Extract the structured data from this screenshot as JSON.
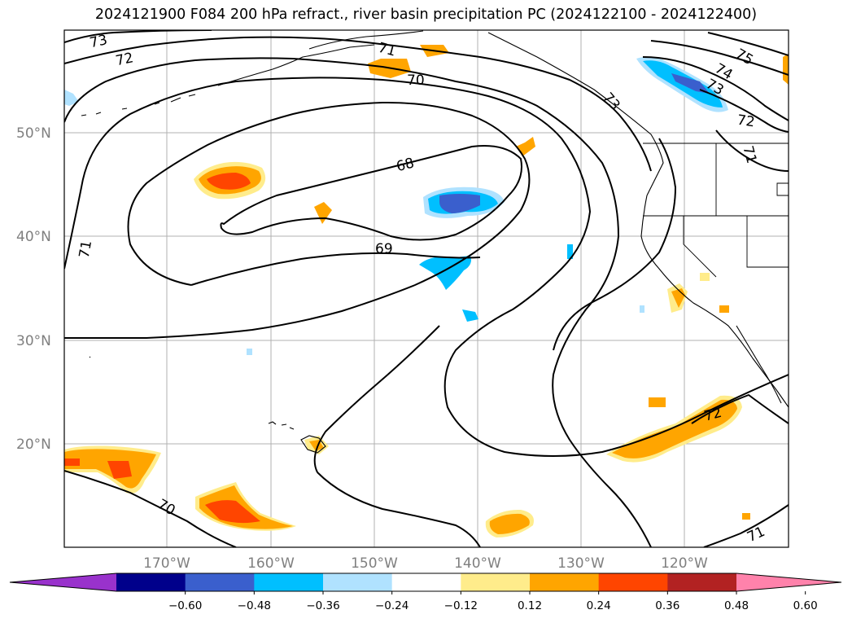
{
  "title": "2024121900 F084 200 hPa refract., river basin precipitation PC (2024122100 - 2024122400)",
  "latitude_labels": [
    "50°N",
    "40°N",
    "30°N",
    "20°N"
  ],
  "longitude_labels": [
    "170°W",
    "160°W",
    "150°W",
    "140°W",
    "130°W",
    "120°W"
  ],
  "contour_labels": [
    "73",
    "72",
    "71",
    "70",
    "68",
    "69",
    "71",
    "75",
    "74",
    "73",
    "72",
    "71",
    "72",
    "70",
    "71",
    "73"
  ],
  "colorbar": {
    "ticks": [
      "−0.60",
      "−0.48",
      "−0.36",
      "−0.24",
      "−0.12",
      "0.12",
      "0.24",
      "0.36",
      "0.48",
      "0.60"
    ],
    "colors": [
      "#9932cc",
      "#00008b",
      "#3a5fcd",
      "#00bfff",
      "#b0e2ff",
      "#ffffff",
      "#ffec8b",
      "#ffa500",
      "#ff4500",
      "#b22222",
      "#ff82ab"
    ]
  },
  "colors": {
    "contour": "#000000",
    "coast": "#000000",
    "grid": "#b0b0b0",
    "label_gray": "#7f7f7f"
  }
}
